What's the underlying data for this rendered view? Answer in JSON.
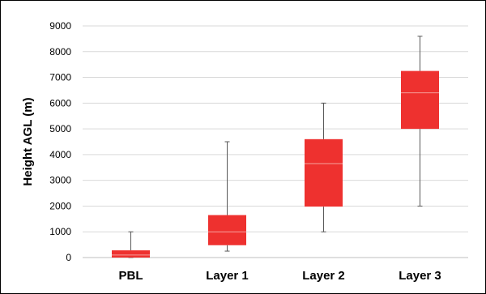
{
  "chart_data": {
    "type": "box",
    "categories": [
      "PBL",
      "Layer 1",
      "Layer 2",
      "Layer 3"
    ],
    "boxes": [
      {
        "category": "PBL",
        "min": 0,
        "q1": 0,
        "median": 100,
        "q3": 280,
        "max": 1000
      },
      {
        "category": "Layer 1",
        "min": 250,
        "q1": 480,
        "median": 1000,
        "q3": 1650,
        "max": 4500
      },
      {
        "category": "Layer 2",
        "min": 1000,
        "q1": 1980,
        "median": 3650,
        "q3": 4600,
        "max": 6000
      },
      {
        "category": "Layer 3",
        "min": 2000,
        "q1": 5000,
        "median": 6400,
        "q3": 7250,
        "max": 8600
      }
    ],
    "ylabel": "Height AGL (m)",
    "ylim": [
      0,
      9000
    ],
    "yticks": [
      0,
      1000,
      2000,
      3000,
      4000,
      5000,
      6000,
      7000,
      8000,
      9000
    ],
    "ytick_labels": [
      "0",
      "1000",
      "2000",
      "3000",
      "4000",
      "5000",
      "6000",
      "7000",
      "8000",
      "9000"
    ],
    "grid": true,
    "colors": {
      "box": "#ee312f",
      "median": "#f6a19d",
      "whisker": "#595959",
      "grid": "#d9d9d9",
      "axis": "#bfbfbf"
    }
  }
}
